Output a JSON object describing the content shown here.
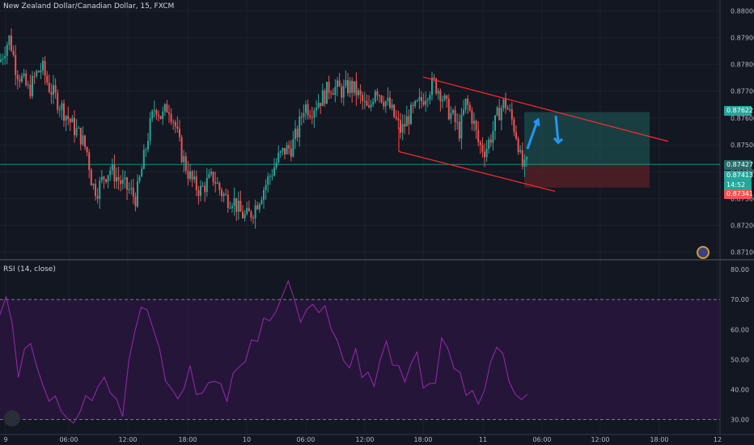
{
  "header": {
    "symbol_title": "New Zealand Dollar/Canadian Dollar, 15, FXCM"
  },
  "rsi": {
    "label": "RSI (14, close)"
  },
  "badges": {
    "target": "0.87622",
    "current": "0.87427",
    "bid": "0.87413",
    "countdown": "14:52",
    "stop": "0.87341"
  },
  "colors": {
    "background": "#131722",
    "up_candle": "#26a69a",
    "down_candle": "#ef5350",
    "channel": "#ff2a2a",
    "arrows": "#2196f3",
    "profit_zone": "#1f5f5c",
    "loss_zone": "#5c2026",
    "rsi_line": "#9c27b0",
    "rsi_band": "#2a1640"
  },
  "chart_data": [
    {
      "type": "candlestick",
      "symbol": "NZD/CAD",
      "timeframe": "15",
      "source": "FXCM",
      "y_ticks": [
        0.88,
        0.879,
        0.878,
        0.877,
        0.876,
        0.875,
        0.874,
        0.873,
        0.872,
        0.871
      ],
      "y_tick_labels": [
        "0.88000",
        "0.87900",
        "0.87800",
        "0.87700",
        "0.87600",
        "0.87500",
        "0.87400",
        "0.87300",
        "0.87200",
        "0.87100"
      ],
      "ylim": [
        0.87075,
        0.8804
      ],
      "x_tick_labels": [
        "9",
        "06:00",
        "12:00",
        "18:00",
        "10",
        "06:00",
        "12:00",
        "18:00",
        "11",
        "06:00",
        "12:00",
        "18:00",
        "12"
      ],
      "close_path": [
        [
          0,
          0.8781
        ],
        [
          6,
          0.8786
        ],
        [
          12,
          0.879
        ],
        [
          20,
          0.8778
        ],
        [
          28,
          0.8774
        ],
        [
          36,
          0.877
        ],
        [
          44,
          0.8776
        ],
        [
          52,
          0.8779
        ],
        [
          60,
          0.8772
        ],
        [
          68,
          0.8768
        ],
        [
          76,
          0.8764
        ],
        [
          84,
          0.876
        ],
        [
          92,
          0.8756
        ],
        [
          100,
          0.8753
        ],
        [
          108,
          0.8747
        ],
        [
          114,
          0.8735
        ],
        [
          120,
          0.8733
        ],
        [
          128,
          0.8738
        ],
        [
          136,
          0.8741
        ],
        [
          144,
          0.8738
        ],
        [
          152,
          0.8735
        ],
        [
          160,
          0.8733
        ],
        [
          168,
          0.873
        ],
        [
          176,
          0.8742
        ],
        [
          184,
          0.8755
        ],
        [
          192,
          0.8765
        ],
        [
          200,
          0.876
        ],
        [
          208,
          0.8765
        ],
        [
          216,
          0.8758
        ],
        [
          224,
          0.8747
        ],
        [
          232,
          0.874
        ],
        [
          240,
          0.8735
        ],
        [
          248,
          0.8733
        ],
        [
          256,
          0.8736
        ],
        [
          264,
          0.8738
        ],
        [
          272,
          0.8733
        ],
        [
          280,
          0.873
        ],
        [
          288,
          0.873
        ],
        [
          296,
          0.8725
        ],
        [
          304,
          0.8723
        ],
        [
          312,
          0.8725
        ],
        [
          320,
          0.873
        ],
        [
          328,
          0.8735
        ],
        [
          336,
          0.874
        ],
        [
          344,
          0.8745
        ],
        [
          352,
          0.8748
        ],
        [
          360,
          0.8749
        ],
        [
          368,
          0.8755
        ],
        [
          376,
          0.8765
        ],
        [
          384,
          0.8763
        ],
        [
          392,
          0.8766
        ],
        [
          400,
          0.8768
        ],
        [
          408,
          0.8772
        ],
        [
          416,
          0.8771
        ],
        [
          424,
          0.877
        ],
        [
          432,
          0.8772
        ],
        [
          440,
          0.877
        ],
        [
          448,
          0.8766
        ],
        [
          456,
          0.8762
        ],
        [
          464,
          0.8772
        ],
        [
          472,
          0.8768
        ],
        [
          480,
          0.8765
        ],
        [
          488,
          0.876
        ],
        [
          496,
          0.8755
        ],
        [
          504,
          0.876
        ],
        [
          512,
          0.8763
        ],
        [
          520,
          0.8766
        ],
        [
          528,
          0.877
        ],
        [
          536,
          0.8773
        ],
        [
          544,
          0.877
        ],
        [
          552,
          0.8764
        ],
        [
          560,
          0.876
        ],
        [
          568,
          0.8755
        ],
        [
          576,
          0.8766
        ],
        [
          584,
          0.876
        ],
        [
          592,
          0.875
        ],
        [
          600,
          0.8748
        ],
        [
          608,
          0.8754
        ],
        [
          616,
          0.8762
        ],
        [
          624,
          0.8766
        ],
        [
          632,
          0.876
        ],
        [
          640,
          0.8752
        ],
        [
          644,
          0.8743
        ],
        [
          648,
          0.8741
        ],
        [
          652,
          0.8743
        ]
      ]
    },
    {
      "type": "line",
      "name": "RSI (14, close)",
      "y_ticks": [
        30,
        40,
        50,
        60,
        70,
        80
      ],
      "y_tick_labels": [
        "30.00",
        "40.00",
        "50.00",
        "60.00",
        "70.00",
        "80.00"
      ],
      "ylim": [
        25,
        83
      ],
      "bands": [
        30,
        70
      ],
      "values": [
        65,
        72,
        60,
        46,
        52,
        56,
        48,
        40,
        38,
        36,
        34,
        30,
        28,
        34,
        36,
        38,
        40,
        44,
        40,
        35,
        33,
        48,
        60,
        68,
        65,
        62,
        52,
        44,
        40,
        36,
        42,
        46,
        40,
        38,
        42,
        44,
        40,
        38,
        44,
        48,
        50,
        55,
        58,
        62,
        64,
        66,
        70,
        78,
        68,
        64,
        66,
        68,
        67,
        66,
        62,
        55,
        50,
        48,
        52,
        46,
        44,
        42,
        50,
        55,
        50,
        46,
        44,
        48,
        52,
        42,
        40,
        44,
        56,
        54,
        48,
        44,
        40,
        38,
        36,
        40,
        48,
        56,
        50,
        44,
        38,
        36,
        40
      ]
    }
  ]
}
